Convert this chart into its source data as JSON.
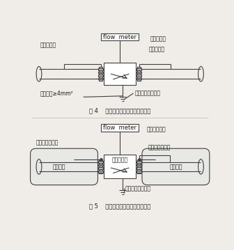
{
  "fig_width": 3.36,
  "fig_height": 3.59,
  "dpi": 100,
  "bg_color": "#f0ede8",
  "line_color": "#404040",
  "fig4_caption": "图 4    电磁流量计接地连（跨）接法",
  "fig5_caption": "图 5    带阴极保护电磁流量计接地法",
  "top_labels": {
    "flow_meter_box": "flow  meter",
    "em_meter_right": "电磁流量计",
    "left_bridge": "与管道跨接",
    "right_bridge": "与管道跨接",
    "ground_wire": "接地软线≥4mm²",
    "ground_point": "接地点或接地干线"
  },
  "bottom_labels": {
    "flow_meter_box": "flow  meter",
    "em_meter_label": "电磁流量计",
    "pipe_bridge": "管道接地跨接",
    "cathode_left": "阴极保护引出点",
    "cathode_right": "阴极保护引出点",
    "metal_pipe_left": "金属管道",
    "metal_pipe_right": "金属管道",
    "ground_point": "接地点或接地干线"
  }
}
